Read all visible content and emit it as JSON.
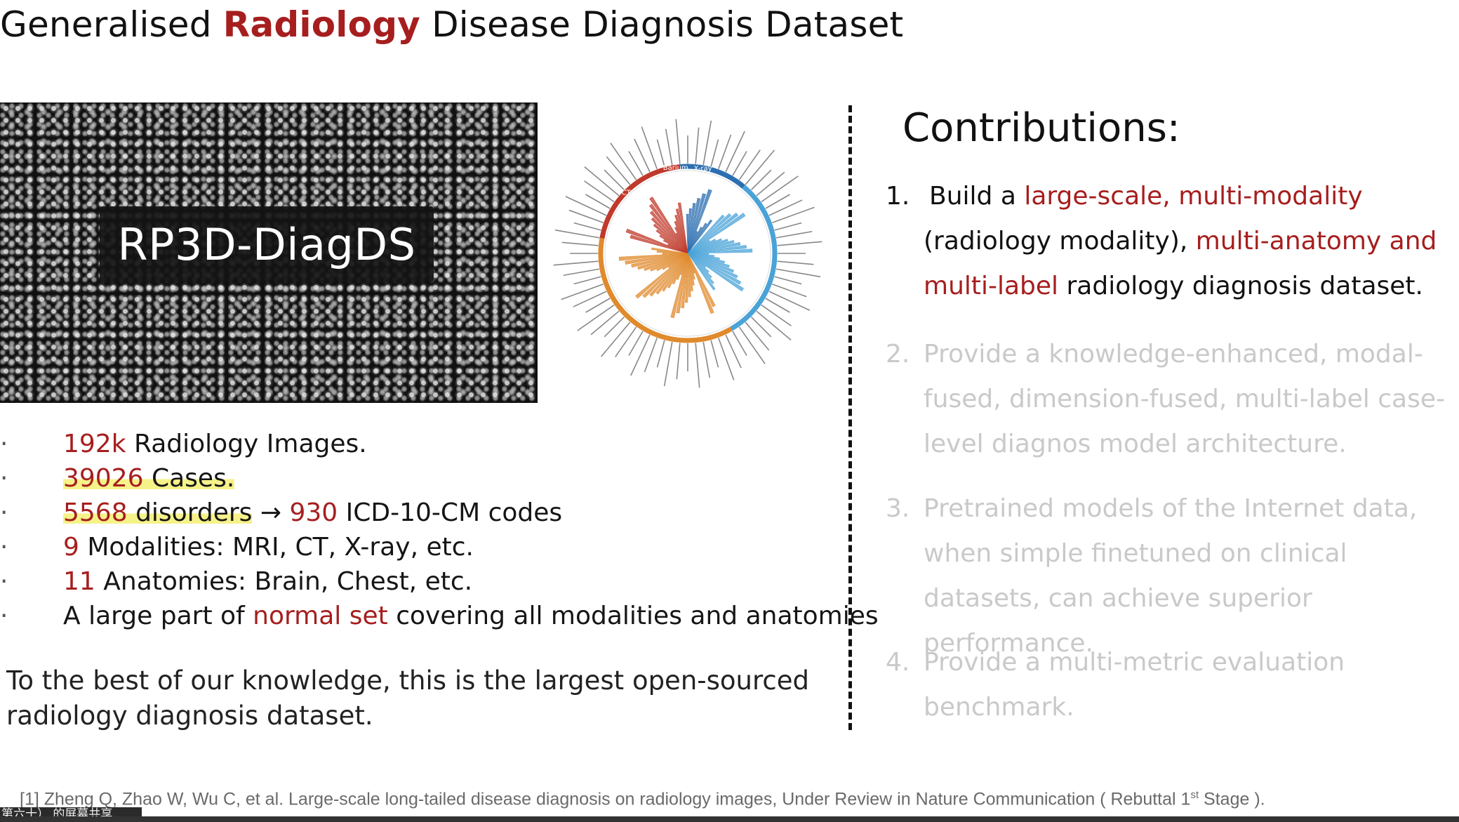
{
  "title": {
    "part1": "Generalised ",
    "accent": "Radiology",
    "part2": " Disease Diagnosis Dataset"
  },
  "mosaic": {
    "label": "RP3D-DiagDS"
  },
  "radial_chart": {
    "modality_labels": [
      "CT",
      "Barium",
      "X-ray"
    ],
    "colors": {
      "red": "#c0392b",
      "blue": "#2c6fb0",
      "lightblue": "#4aa3d8",
      "orange": "#e08a2c"
    }
  },
  "stats": [
    {
      "num": "192k",
      "rest": " Radiology Images."
    },
    {
      "num": "39026",
      "rest": " Cases."
    },
    {
      "num": "5568",
      "mid": " disorders",
      "arrow": " → ",
      "num2": "930",
      "rest": " ICD-10-CM codes"
    },
    {
      "num": "9",
      "rest": " Modalities: MRI, CT, X-ray, etc."
    },
    {
      "num": "11",
      "rest": " Anatomies: Brain, Chest, etc."
    },
    {
      "pre": "A large part of ",
      "accent": "normal set",
      "rest": " covering all modalities and anatomies"
    }
  ],
  "closing": "To the best of our knowledge, this is the largest open-sourced radiology diagnosis dataset.",
  "contributions": {
    "heading": "Contributions:",
    "items": [
      {
        "num": "1.",
        "a": "Build a ",
        "b": "large-scale, multi-modality",
        "c": " (radiology modality), ",
        "d": "multi-anatomy and multi-label",
        "e": " radiology diagnosis dataset."
      },
      {
        "num": "2.",
        "text": "Provide a knowledge-enhanced, modal-fused, dimension-fused, multi-label case-level diagnos model architecture."
      },
      {
        "num": "3.",
        "text": "Pretrained models of the Internet data, when simple finetuned on clinical datasets, can achieve superior performance."
      },
      {
        "num": "4.",
        "text": "Provide a multi-metric evaluation benchmark."
      }
    ]
  },
  "footnote": {
    "text": "[1] Zheng Q, Zhao W, Wu C, et al. Large-scale long-tailed disease diagnosis on radiology images, Under Review in Nature Communication ( Rebuttal 1",
    "sup": "st",
    "end": " Stage )."
  },
  "caption": "第六十） 的屏幕共享"
}
